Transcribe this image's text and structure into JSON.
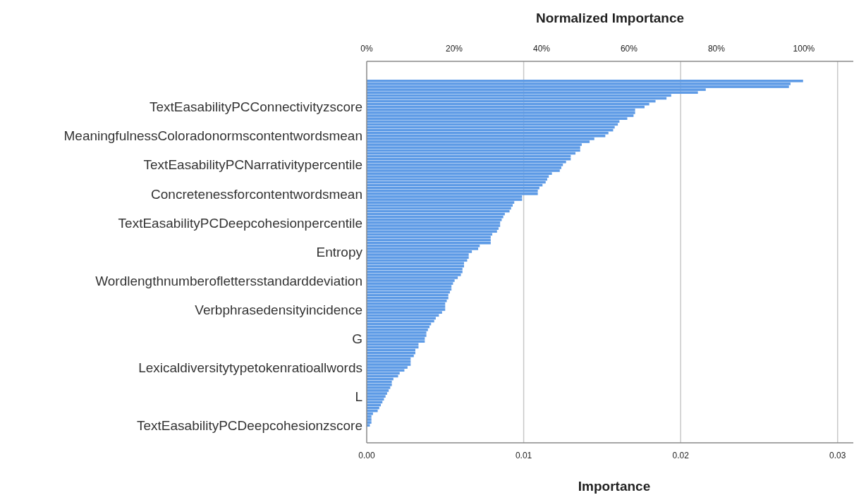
{
  "chart_data": {
    "type": "bar",
    "orientation": "horizontal",
    "xlabel": "Importance",
    "x2label": "Normalized Importance",
    "categories": [
      null,
      null,
      null,
      null,
      null,
      null,
      null,
      null,
      null,
      "TextEasabilityPCConnectivityzscore",
      null,
      null,
      null,
      null,
      null,
      null,
      null,
      null,
      null,
      "MeaningfulnessColoradonormscontentwordsmean",
      null,
      null,
      null,
      null,
      null,
      null,
      null,
      null,
      null,
      "TextEasabilityPCNarrativitypercentile",
      null,
      null,
      null,
      null,
      null,
      null,
      null,
      null,
      null,
      "Concretenessforcontentwordsmean",
      null,
      null,
      null,
      null,
      null,
      null,
      null,
      null,
      null,
      "TextEasabilityPCDeepcohesionpercentile",
      null,
      null,
      null,
      null,
      null,
      null,
      null,
      null,
      null,
      "Entropy",
      null,
      null,
      null,
      null,
      null,
      null,
      null,
      null,
      null,
      "Wordlengthnumberoflettersstandarddeviation",
      null,
      null,
      null,
      null,
      null,
      null,
      null,
      null,
      null,
      "Verbphrasedensityincidence",
      null,
      null,
      null,
      null,
      null,
      null,
      null,
      null,
      null,
      "G",
      null,
      null,
      null,
      null,
      null,
      null,
      null,
      null,
      null,
      "Lexicaldiversitytypetokenratioallwords",
      null,
      null,
      null,
      null,
      null,
      null,
      null,
      null,
      null,
      "L",
      null,
      null,
      null,
      null,
      null,
      null,
      null,
      null,
      null,
      "TextEasabilityPCDeepcohesionzscore"
    ],
    "values": [
      0.0278,
      0.027,
      0.0269,
      0.0216,
      0.0211,
      0.0194,
      0.0191,
      0.0184,
      0.018,
      0.0177,
      0.0171,
      0.0171,
      0.017,
      0.0166,
      0.0161,
      0.016,
      0.0158,
      0.0157,
      0.0154,
      0.0152,
      0.0145,
      0.0142,
      0.0137,
      0.0136,
      0.0136,
      0.0133,
      0.013,
      0.013,
      0.0127,
      0.0125,
      0.0124,
      0.0123,
      0.0118,
      0.0116,
      0.0115,
      0.0114,
      0.0112,
      0.011,
      0.0109,
      0.0109,
      0.0099,
      0.0099,
      0.0094,
      0.0093,
      0.0092,
      0.0091,
      0.0088,
      0.0087,
      0.0086,
      0.0085,
      0.0085,
      0.0084,
      0.0083,
      0.008,
      0.0079,
      0.0079,
      0.0079,
      0.0072,
      0.0071,
      0.0067,
      0.0065,
      0.0065,
      0.0064,
      0.0062,
      0.0062,
      0.0061,
      0.0061,
      0.006,
      0.0058,
      0.0056,
      0.0055,
      0.0054,
      0.0054,
      0.0053,
      0.0052,
      0.0052,
      0.0051,
      0.005,
      0.005,
      0.005,
      0.0048,
      0.0046,
      0.0044,
      0.0043,
      0.0041,
      0.004,
      0.0039,
      0.0038,
      0.0038,
      0.0037,
      0.0037,
      0.0033,
      0.0033,
      0.0031,
      0.0031,
      0.003,
      0.0028,
      0.0028,
      0.0028,
      0.0026,
      0.0024,
      0.0021,
      0.002,
      0.0017,
      0.0016,
      0.0016,
      0.0015,
      0.0014,
      0.0013,
      0.0012,
      0.0011,
      0.001,
      0.0009,
      0.0008,
      0.0007,
      0.0004,
      0.0003,
      0.0003,
      0.0003,
      0.0002
    ],
    "color": "#5e9be6",
    "xlim": [
      0,
      0.031
    ],
    "xticks": [
      {
        "value": 0,
        "label": "0.00"
      },
      {
        "value": 0.01,
        "label": "0.01"
      },
      {
        "value": 0.02,
        "label": "0.02"
      },
      {
        "value": 0.03,
        "label": "0.03"
      }
    ],
    "x2lim": [
      0,
      111.3
    ],
    "x2ticks": [
      {
        "value": 0,
        "label": "0%"
      },
      {
        "value": 20,
        "label": "20%"
      },
      {
        "value": 40,
        "label": "40%"
      },
      {
        "value": 60,
        "label": "60%"
      },
      {
        "value": 80,
        "label": "80%"
      },
      {
        "value": 100,
        "label": "100%"
      }
    ],
    "grid": "x"
  }
}
